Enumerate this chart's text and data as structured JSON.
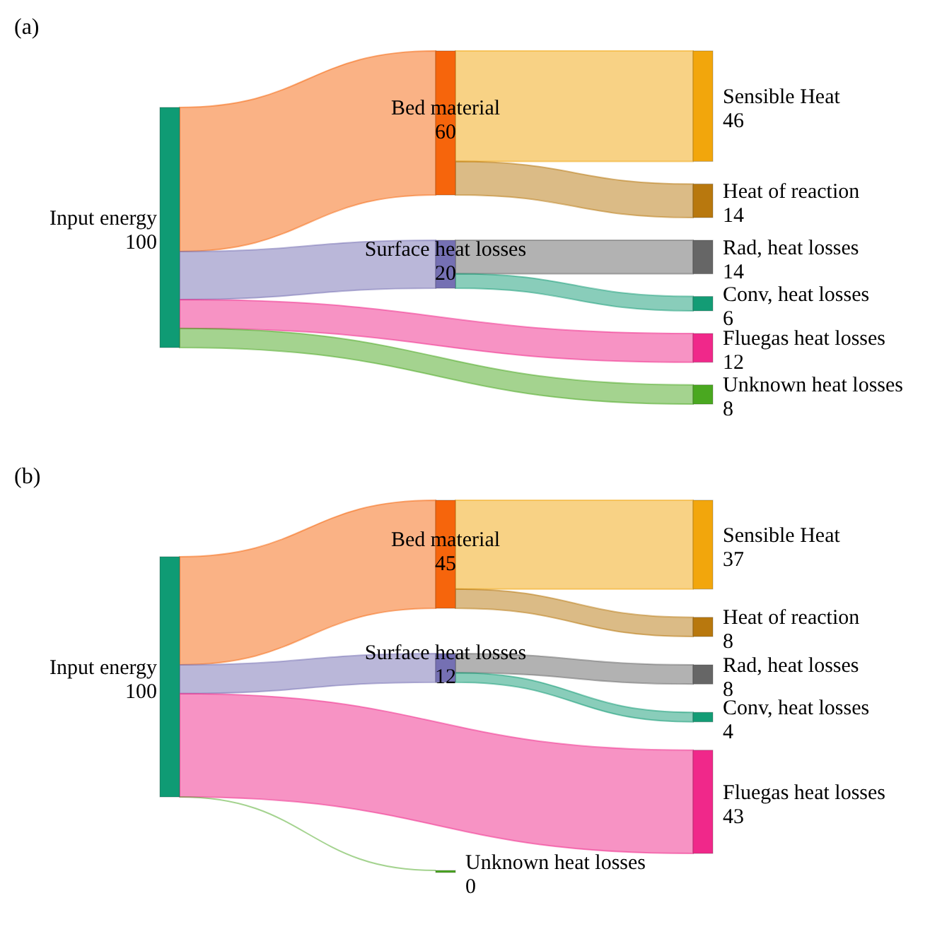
{
  "chart_data": [
    {
      "type": "other",
      "title": "(a)",
      "data_labels": true,
      "categories": [
        "Input energy",
        "Bed material",
        "Surface heat losses",
        "Sensible Heat",
        "Heat of reaction",
        "Rad, heat losses",
        "Conv, heat losses",
        "Fluegas heat losses",
        "Unknown heat losses"
      ],
      "values": [
        100,
        null,
        null,
        null,
        null,
        null,
        null,
        null,
        null
      ],
      "colors": [
        "#0f9b74",
        null,
        null,
        null,
        null,
        null,
        null,
        null,
        null
      ],
      "series": [
        {
          "values": [
            null,
            60,
            20,
            null,
            null,
            null,
            null,
            12,
            8
          ],
          "colors": [
            null,
            "#f6650c",
            "#7570b3",
            null,
            null,
            null,
            null,
            "#f0288a",
            "#4aa820"
          ]
        },
        {
          "values": [
            null,
            null,
            null,
            46,
            14,
            null,
            null,
            null,
            null
          ],
          "colors": [
            null,
            null,
            null,
            "#f2a60c",
            "#b8780e",
            null,
            null,
            null,
            null
          ]
        },
        {
          "values": [
            null,
            null,
            null,
            null,
            null,
            14,
            6,
            null,
            null
          ],
          "colors": [
            null,
            null,
            null,
            null,
            null,
            "#666666",
            "#139c75",
            null,
            null
          ]
        }
      ]
    },
    {
      "type": "other",
      "title": "(b)",
      "data_labels": true,
      "categories": [
        "Input energy",
        "Bed material",
        "Surface heat losses",
        "Sensible Heat",
        "Heat of reaction",
        "Rad, heat losses",
        "Conv, heat losses",
        "Fluegas heat losses",
        "Unknown heat losses"
      ],
      "values": [
        100,
        null,
        null,
        null,
        null,
        null,
        null,
        null,
        null
      ],
      "colors": [
        "#0f9b74",
        null,
        null,
        null,
        null,
        null,
        null,
        null,
        null
      ],
      "series": [
        {
          "values": [
            null,
            45,
            12,
            null,
            null,
            null,
            null,
            43,
            0
          ],
          "colors": [
            null,
            "#f6650c",
            "#7570b3",
            null,
            null,
            null,
            null,
            "#f0288a",
            "#4aa820"
          ]
        },
        {
          "values": [
            null,
            null,
            null,
            37,
            8,
            null,
            null,
            null,
            null
          ],
          "colors": [
            null,
            null,
            null,
            "#f2a60c",
            "#b8780e",
            null,
            null,
            null,
            null
          ]
        },
        {
          "values": [
            null,
            null,
            null,
            null,
            null,
            8,
            4,
            null,
            null
          ],
          "colors": [
            null,
            null,
            null,
            null,
            null,
            "#666666",
            "#139c75",
            null,
            null
          ]
        }
      ]
    }
  ]
}
